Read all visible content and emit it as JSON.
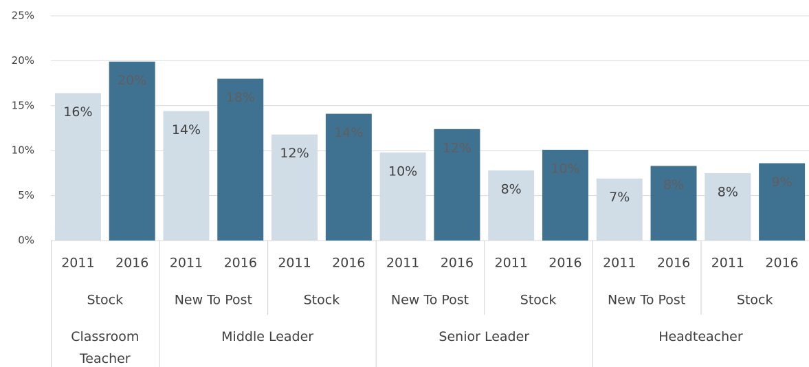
{
  "chart_data": {
    "type": "bar",
    "ylim": [
      0,
      25
    ],
    "yticks": [
      {
        "value": 0,
        "label": "0%"
      },
      {
        "value": 5,
        "label": "5%"
      },
      {
        "value": 10,
        "label": "10%"
      },
      {
        "value": 15,
        "label": "15%"
      },
      {
        "value": 20,
        "label": "20%"
      },
      {
        "value": 25,
        "label": "25%"
      }
    ],
    "grid": true,
    "bar_colors": [
      "#d0dde6",
      "#3f7191"
    ],
    "groups": [
      {
        "label": "Classroom Teacher",
        "subgroups": [
          {
            "label": "Stock",
            "categories": [
              "2011",
              "2016"
            ],
            "values": [
              16.4,
              19.9
            ],
            "value_labels": [
              "16%",
              "20%"
            ]
          }
        ]
      },
      {
        "label": "Middle Leader",
        "subgroups": [
          {
            "label": "New To Post",
            "categories": [
              "2011",
              "2016"
            ],
            "values": [
              14.4,
              18.0
            ],
            "value_labels": [
              "14%",
              "18%"
            ]
          },
          {
            "label": "Stock",
            "categories": [
              "2011",
              "2016"
            ],
            "values": [
              11.8,
              14.1
            ],
            "value_labels": [
              "12%",
              "14%"
            ]
          }
        ]
      },
      {
        "label": "Senior Leader",
        "subgroups": [
          {
            "label": "New To Post",
            "categories": [
              "2011",
              "2016"
            ],
            "values": [
              9.8,
              12.4
            ],
            "value_labels": [
              "10%",
              "12%"
            ]
          },
          {
            "label": "Stock",
            "categories": [
              "2011",
              "2016"
            ],
            "values": [
              7.8,
              10.1
            ],
            "value_labels": [
              "8%",
              "10%"
            ]
          }
        ]
      },
      {
        "label": "Headteacher",
        "subgroups": [
          {
            "label": "New To Post",
            "categories": [
              "2011",
              "2016"
            ],
            "values": [
              6.9,
              8.3
            ],
            "value_labels": [
              "7%",
              "8%"
            ]
          },
          {
            "label": "Stock",
            "categories": [
              "2011",
              "2016"
            ],
            "values": [
              7.5,
              8.6
            ],
            "value_labels": [
              "8%",
              "9%"
            ]
          }
        ]
      }
    ]
  }
}
